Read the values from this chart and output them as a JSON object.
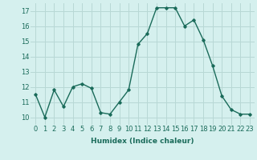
{
  "x": [
    0,
    1,
    2,
    3,
    4,
    5,
    6,
    7,
    8,
    9,
    10,
    11,
    12,
    13,
    14,
    15,
    16,
    17,
    18,
    19,
    20,
    21,
    22,
    23
  ],
  "y": [
    11.5,
    10.0,
    11.8,
    10.7,
    12.0,
    12.2,
    11.9,
    10.3,
    10.2,
    11.0,
    11.8,
    14.8,
    15.5,
    17.2,
    17.2,
    17.2,
    16.0,
    16.4,
    15.1,
    13.4,
    11.4,
    10.5,
    10.2,
    10.2
  ],
  "xlabel": "Humidex (Indice chaleur)",
  "ylim": [
    9.5,
    17.5
  ],
  "xlim": [
    -0.5,
    23.5
  ],
  "yticks": [
    10,
    11,
    12,
    13,
    14,
    15,
    16,
    17
  ],
  "xticks": [
    0,
    1,
    2,
    3,
    4,
    5,
    6,
    7,
    8,
    9,
    10,
    11,
    12,
    13,
    14,
    15,
    16,
    17,
    18,
    19,
    20,
    21,
    22,
    23
  ],
  "line_color": "#1a6b5a",
  "marker": "D",
  "marker_size": 1.8,
  "bg_color": "#d5f0ee",
  "grid_color": "#b8d8d5",
  "xlabel_fontsize": 6.5,
  "tick_fontsize": 6.0,
  "line_width": 1.0
}
